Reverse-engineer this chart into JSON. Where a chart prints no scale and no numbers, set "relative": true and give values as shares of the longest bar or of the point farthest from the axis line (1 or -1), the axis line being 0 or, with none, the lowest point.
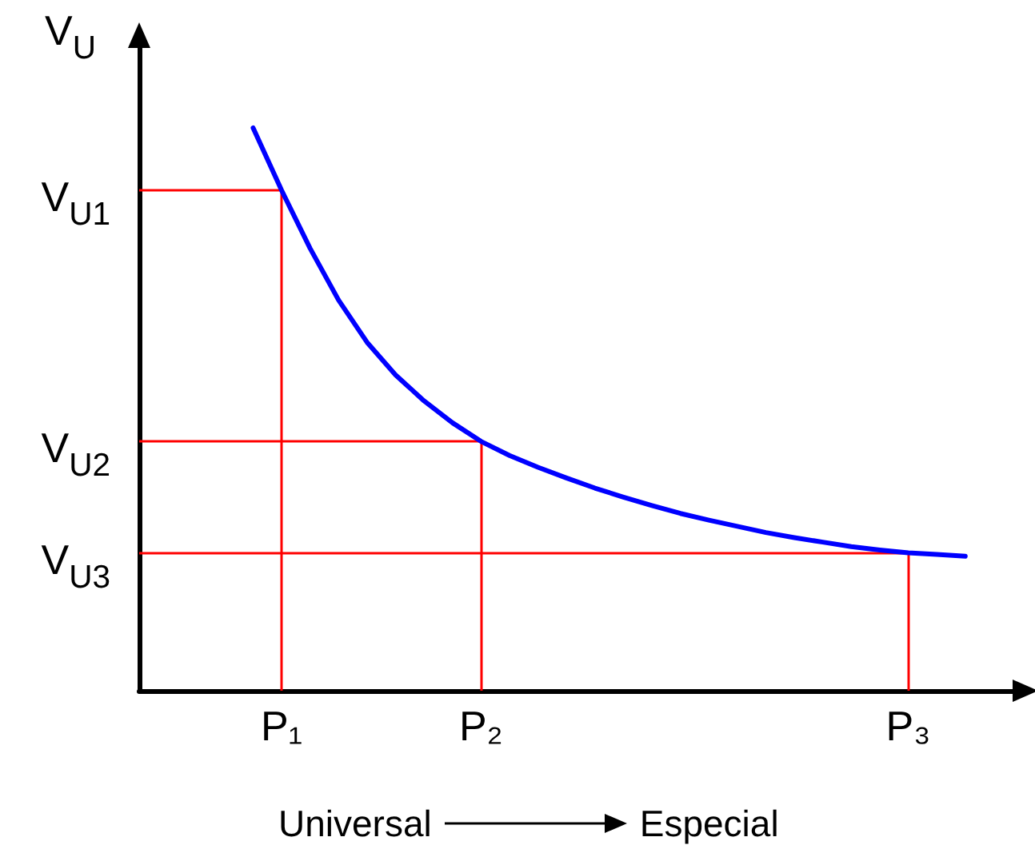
{
  "chart_data": {
    "type": "line",
    "relative": true,
    "ylabel": "V$_{U}$",
    "categories": [
      null,
      null,
      null,
      null,
      null,
      "P₁",
      null,
      null,
      null,
      null,
      null,
      null,
      "P₂",
      null,
      null,
      null,
      null,
      null,
      null,
      null,
      null,
      null,
      null,
      null,
      null,
      null,
      null,
      "P₃",
      null,
      null,
      null,
      null
    ],
    "series": [
      {
        "color": "#0000ff",
        "values": [
          null,
          null,
          null,
          null,
          1,
          0.889,
          0.786,
          0.694,
          0.619,
          0.561,
          0.515,
          0.476,
          0.443,
          0.418,
          0.397,
          0.378,
          0.36,
          0.344,
          0.329,
          0.315,
          0.303,
          0.292,
          0.281,
          0.272,
          0.264,
          0.256,
          0.25,
          0.245,
          0.242,
          0.239,
          null,
          null
        ]
      }
    ],
    "ref_lines": [
      {
        "axis": "y",
        "value": 0.889,
        "label": "V$_{U1}$",
        "color": "#ff0000"
      },
      {
        "axis": "y",
        "value": 0.443,
        "label": "V$_{U2}$",
        "color": "#ff0000"
      },
      {
        "axis": "y",
        "value": 0.245,
        "label": "V$_{U3}$",
        "color": "#ff0000"
      },
      {
        "axis": "x",
        "value": "P₁",
        "color": "#ff0000"
      },
      {
        "axis": "x",
        "value": "P₂",
        "color": "#ff0000"
      },
      {
        "axis": "x",
        "value": "P₃",
        "color": "#ff0000"
      }
    ],
    "annotations": [
      "Universal",
      "Especial"
    ],
    "marker": "none",
    "grid": false
  }
}
